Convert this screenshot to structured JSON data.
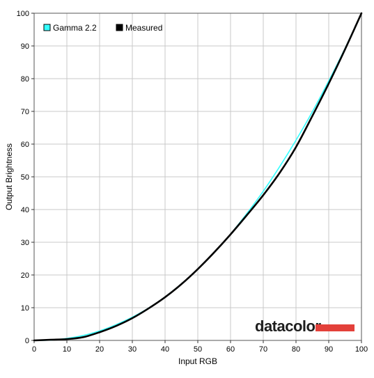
{
  "chart_data": {
    "type": "line",
    "title": "",
    "xlabel": "Input RGB",
    "ylabel": "Output Brightness",
    "xlim": [
      0,
      100
    ],
    "ylim": [
      0,
      100
    ],
    "x_ticks": [
      0,
      10,
      20,
      30,
      40,
      50,
      60,
      70,
      80,
      90,
      100
    ],
    "y_ticks": [
      0,
      10,
      20,
      30,
      40,
      50,
      60,
      70,
      80,
      90,
      100
    ],
    "grid": true,
    "legend_position": "top-left",
    "series": [
      {
        "name": "Gamma 2.2",
        "color": "#33ffff",
        "x": [
          0,
          5,
          10,
          15,
          20,
          25,
          30,
          35,
          40,
          45,
          50,
          55,
          60,
          65,
          70,
          75,
          80,
          85,
          90,
          95,
          100
        ],
        "y": [
          0,
          0.1,
          0.6,
          1.5,
          2.9,
          4.8,
          7.1,
          9.9,
          13.3,
          17.3,
          21.8,
          26.9,
          32.5,
          38.8,
          45.6,
          53.1,
          61.2,
          69.9,
          79.3,
          89.3,
          100
        ]
      },
      {
        "name": "Measured",
        "color": "#000000",
        "x": [
          0,
          5,
          10,
          15,
          20,
          25,
          30,
          35,
          40,
          45,
          50,
          55,
          60,
          65,
          70,
          75,
          80,
          85,
          90,
          95,
          100
        ],
        "y": [
          0,
          0.2,
          0.4,
          1.0,
          2.5,
          4.4,
          6.8,
          9.8,
          13.2,
          17.2,
          21.8,
          26.9,
          32.4,
          38.3,
          44.4,
          51.2,
          59.1,
          68.6,
          78.5,
          89.0,
          100
        ]
      }
    ]
  },
  "watermark": {
    "text": "datacolor",
    "accent": "#e3403a"
  }
}
